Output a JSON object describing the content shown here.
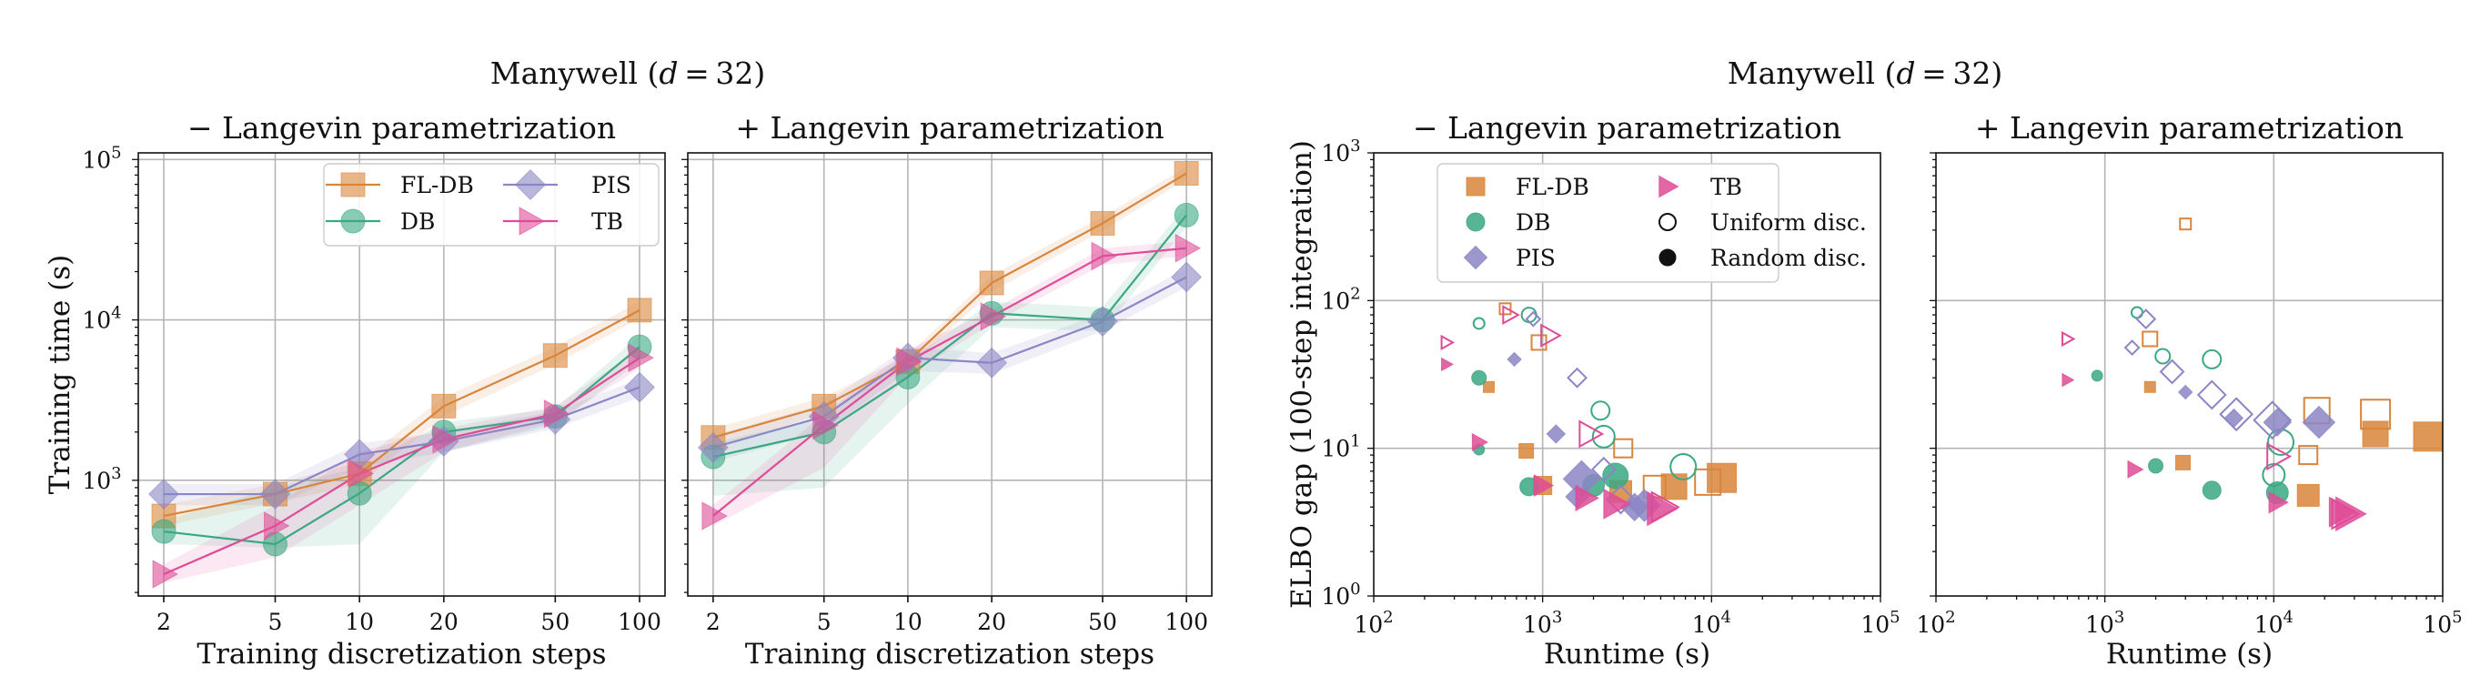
{
  "left_figure": {
    "suptitle_prefix": "Manywell (",
    "suptitle_var": "d",
    "suptitle_suffix": " = 32)"
  },
  "right_figure": {
    "suptitle_prefix": "Manywell (",
    "suptitle_var": "d",
    "suptitle_suffix": " = 32)"
  },
  "colors": {
    "FL-DB": "#d9853b",
    "DB": "#3aa882",
    "PIS": "#8b86c4",
    "TB": "#de4c97"
  },
  "chart_data": [
    {
      "type": "line",
      "title": "− Langevin parametrization",
      "xlabel": "Training discretization steps",
      "ylabel": "Training time (s)",
      "xscale": "log",
      "yscale": "log",
      "x": [
        2,
        5,
        10,
        20,
        50,
        100
      ],
      "x_tick_labels": [
        "2",
        "5",
        "10",
        "20",
        "50",
        "100"
      ],
      "ylim": [
        190,
        110000
      ],
      "y_ticks": [
        {
          "value": 1000,
          "base": "10",
          "exp": "3"
        },
        {
          "value": 10000,
          "base": "10",
          "exp": "4"
        },
        {
          "value": 100000,
          "base": "10",
          "exp": "5"
        }
      ],
      "grid": true,
      "legend": {
        "position": "top-right",
        "columns": 2
      },
      "series": [
        {
          "name": "FL-DB",
          "marker": "square",
          "values": [
            600,
            820,
            1100,
            2900,
            6000,
            11500
          ],
          "band_low": [
            520,
            720,
            950,
            2500,
            5300,
            10200
          ],
          "band_high": [
            700,
            950,
            1300,
            3300,
            6800,
            13000
          ]
        },
        {
          "name": "DB",
          "marker": "circle",
          "values": [
            480,
            400,
            830,
            2000,
            2500,
            6800
          ],
          "band_low": [
            400,
            380,
            400,
            1500,
            2200,
            5500
          ],
          "band_high": [
            560,
            900,
            1200,
            2300,
            2800,
            8000
          ]
        },
        {
          "name": "PIS",
          "marker": "diamond",
          "values": [
            820,
            820,
            1450,
            1750,
            2400,
            3800
          ],
          "band_low": [
            700,
            700,
            1200,
            1500,
            2100,
            3300
          ],
          "band_high": [
            950,
            950,
            1700,
            2000,
            2700,
            4300
          ]
        },
        {
          "name": "TB",
          "marker": "triangle",
          "values": [
            260,
            520,
            1100,
            1800,
            2600,
            5800
          ],
          "band_low": [
            230,
            330,
            700,
            1500,
            2300,
            5000
          ],
          "band_high": [
            300,
            700,
            1500,
            2100,
            2900,
            6600
          ]
        }
      ]
    },
    {
      "type": "line",
      "title": "+ Langevin parametrization",
      "xlabel": "Training discretization steps",
      "xscale": "log",
      "yscale": "log",
      "x": [
        2,
        5,
        10,
        20,
        50,
        100
      ],
      "x_tick_labels": [
        "2",
        "5",
        "10",
        "20",
        "50",
        "100"
      ],
      "ylim": [
        190,
        110000
      ],
      "grid": true,
      "series": [
        {
          "name": "FL-DB",
          "marker": "square",
          "values": [
            1850,
            2900,
            5500,
            17000,
            40000,
            82000
          ],
          "band_low": [
            1600,
            2600,
            5000,
            15000,
            36000,
            75000
          ],
          "band_high": [
            2100,
            3300,
            6000,
            19000,
            44000,
            90000
          ]
        },
        {
          "name": "DB",
          "marker": "circle",
          "values": [
            1400,
            2000,
            4400,
            11000,
            10000,
            45000
          ],
          "band_low": [
            800,
            900,
            3000,
            9000,
            8500,
            38000
          ],
          "band_high": [
            1700,
            2500,
            5500,
            13000,
            12000,
            52000
          ]
        },
        {
          "name": "PIS",
          "marker": "diamond",
          "values": [
            1600,
            2500,
            5800,
            5400,
            9800,
            18500
          ],
          "band_low": [
            1300,
            2000,
            4800,
            4600,
            8500,
            16000
          ],
          "band_high": [
            1900,
            3000,
            6800,
            6200,
            11000,
            21000
          ]
        },
        {
          "name": "TB",
          "marker": "triangle",
          "values": [
            600,
            2200,
            5500,
            10500,
            25000,
            28000
          ],
          "band_low": [
            520,
            1200,
            4500,
            9500,
            22000,
            25000
          ],
          "band_high": [
            700,
            2600,
            6500,
            11500,
            28000,
            31000
          ]
        }
      ]
    },
    {
      "type": "scatter",
      "title": "− Langevin parametrization",
      "xlabel": "Runtime (s)",
      "ylabel": "ELBO gap (100-step integration)",
      "xscale": "log",
      "yscale": "log",
      "xlim": [
        100,
        100000
      ],
      "ylim": [
        1,
        1000
      ],
      "x_ticks": [
        {
          "value": 100,
          "base": "10",
          "exp": "2"
        },
        {
          "value": 1000,
          "base": "10",
          "exp": "3"
        },
        {
          "value": 10000,
          "base": "10",
          "exp": "4"
        },
        {
          "value": 100000,
          "base": "10",
          "exp": "5"
        }
      ],
      "y_ticks": [
        {
          "value": 1,
          "base": "10",
          "exp": "0"
        },
        {
          "value": 10,
          "base": "10",
          "exp": "1"
        },
        {
          "value": 100,
          "base": "10",
          "exp": "2"
        },
        {
          "value": 1000,
          "base": "10",
          "exp": "3"
        }
      ],
      "grid": true,
      "legend": {
        "position": "top-left",
        "columns": 2
      },
      "legend_fill_labels": {
        "uniform": "Uniform disc.",
        "random": "Random disc."
      },
      "points": [
        {
          "series": "FL-DB",
          "fill": "random",
          "x": 480,
          "y": 26,
          "steps": 2
        },
        {
          "series": "FL-DB",
          "fill": "random",
          "x": 800,
          "y": 9.6,
          "steps": 5
        },
        {
          "series": "FL-DB",
          "fill": "random",
          "x": 1000,
          "y": 5.6,
          "steps": 10
        },
        {
          "series": "FL-DB",
          "fill": "random",
          "x": 2900,
          "y": 5.1,
          "steps": 20
        },
        {
          "series": "FL-DB",
          "fill": "random",
          "x": 6000,
          "y": 5.5,
          "steps": 50
        },
        {
          "series": "FL-DB",
          "fill": "random",
          "x": 11500,
          "y": 6.3,
          "steps": 100
        },
        {
          "series": "FL-DB",
          "fill": "uniform",
          "x": 600,
          "y": 88,
          "steps": 2
        },
        {
          "series": "FL-DB",
          "fill": "uniform",
          "x": 950,
          "y": 52,
          "steps": 5
        },
        {
          "series": "FL-DB",
          "fill": "uniform",
          "x": 3000,
          "y": 10,
          "steps": 10
        },
        {
          "series": "FL-DB",
          "fill": "uniform",
          "x": 4600,
          "y": 5.5,
          "steps": 20
        },
        {
          "series": "FL-DB",
          "fill": "uniform",
          "x": 9500,
          "y": 5.9,
          "steps": 50
        },
        {
          "series": "DB",
          "fill": "random",
          "x": 420,
          "y": 9.8,
          "steps": 2
        },
        {
          "series": "DB",
          "fill": "random",
          "x": 420,
          "y": 30,
          "steps": 5
        },
        {
          "series": "DB",
          "fill": "random",
          "x": 830,
          "y": 5.5,
          "steps": 10
        },
        {
          "series": "DB",
          "fill": "random",
          "x": 2000,
          "y": 5.6,
          "steps": 20
        },
        {
          "series": "DB",
          "fill": "random",
          "x": 2700,
          "y": 6.5,
          "steps": 50
        },
        {
          "series": "DB",
          "fill": "uniform",
          "x": 420,
          "y": 70,
          "steps": 2
        },
        {
          "series": "DB",
          "fill": "uniform",
          "x": 830,
          "y": 80,
          "steps": 5
        },
        {
          "series": "DB",
          "fill": "uniform",
          "x": 2200,
          "y": 18,
          "steps": 10
        },
        {
          "series": "DB",
          "fill": "uniform",
          "x": 2300,
          "y": 12,
          "steps": 20
        },
        {
          "series": "DB",
          "fill": "uniform",
          "x": 6800,
          "y": 7.5,
          "steps": 50
        },
        {
          "series": "PIS",
          "fill": "random",
          "x": 680,
          "y": 40,
          "steps": 2
        },
        {
          "series": "PIS",
          "fill": "random",
          "x": 1200,
          "y": 12.5,
          "steps": 5
        },
        {
          "series": "PIS",
          "fill": "random",
          "x": 1600,
          "y": 4.7,
          "steps": 10
        },
        {
          "series": "PIS",
          "fill": "random",
          "x": 3500,
          "y": 4.0,
          "steps": 20
        },
        {
          "series": "PIS",
          "fill": "random",
          "x": 4000,
          "y": 4.1,
          "steps": 50
        },
        {
          "series": "PIS",
          "fill": "random",
          "x": 1700,
          "y": 6.2,
          "steps": 100
        },
        {
          "series": "PIS",
          "fill": "uniform",
          "x": 880,
          "y": 75,
          "steps": 2
        },
        {
          "series": "PIS",
          "fill": "uniform",
          "x": 1600,
          "y": 30,
          "steps": 5
        },
        {
          "series": "PIS",
          "fill": "uniform",
          "x": 2300,
          "y": 7.2,
          "steps": 10
        },
        {
          "series": "PIS",
          "fill": "uniform",
          "x": 2900,
          "y": 4.5,
          "steps": 20
        },
        {
          "series": "TB",
          "fill": "random",
          "x": 270,
          "y": 37,
          "steps": 2
        },
        {
          "series": "TB",
          "fill": "random",
          "x": 420,
          "y": 11,
          "steps": 5
        },
        {
          "series": "TB",
          "fill": "random",
          "x": 1000,
          "y": 5.6,
          "steps": 10
        },
        {
          "series": "TB",
          "fill": "random",
          "x": 1800,
          "y": 4.6,
          "steps": 20
        },
        {
          "series": "TB",
          "fill": "random",
          "x": 2700,
          "y": 4.2,
          "steps": 50
        },
        {
          "series": "TB",
          "fill": "random",
          "x": 5000,
          "y": 3.9,
          "steps": 100
        },
        {
          "series": "TB",
          "fill": "uniform",
          "x": 270,
          "y": 52,
          "steps": 2
        },
        {
          "series": "TB",
          "fill": "uniform",
          "x": 640,
          "y": 80,
          "steps": 5
        },
        {
          "series": "TB",
          "fill": "uniform",
          "x": 1100,
          "y": 58,
          "steps": 10
        },
        {
          "series": "TB",
          "fill": "uniform",
          "x": 1900,
          "y": 12.5,
          "steps": 20
        },
        {
          "series": "TB",
          "fill": "uniform",
          "x": 5200,
          "y": 4.0,
          "steps": 50
        }
      ]
    },
    {
      "type": "scatter",
      "title": "+ Langevin parametrization",
      "xlabel": "Runtime (s)",
      "xscale": "log",
      "yscale": "log",
      "xlim": [
        100,
        100000
      ],
      "ylim": [
        1,
        1000
      ],
      "x_ticks": [
        {
          "value": 100,
          "base": "10",
          "exp": "2"
        },
        {
          "value": 1000,
          "base": "10",
          "exp": "3"
        },
        {
          "value": 10000,
          "base": "10",
          "exp": "4"
        },
        {
          "value": 100000,
          "base": "10",
          "exp": "5"
        }
      ],
      "grid": true,
      "points": [
        {
          "series": "FL-DB",
          "fill": "random",
          "x": 1850,
          "y": 26,
          "steps": 2
        },
        {
          "series": "FL-DB",
          "fill": "random",
          "x": 2900,
          "y": 8,
          "steps": 5
        },
        {
          "series": "FL-DB",
          "fill": "random",
          "x": 16000,
          "y": 4.8,
          "steps": 20
        },
        {
          "series": "FL-DB",
          "fill": "random",
          "x": 40000,
          "y": 12.5,
          "steps": 50
        },
        {
          "series": "FL-DB",
          "fill": "random",
          "x": 82000,
          "y": 12,
          "steps": 100
        },
        {
          "series": "FL-DB",
          "fill": "uniform",
          "x": 3000,
          "y": 330,
          "steps": 2
        },
        {
          "series": "FL-DB",
          "fill": "uniform",
          "x": 1850,
          "y": 55,
          "steps": 5
        },
        {
          "series": "FL-DB",
          "fill": "uniform",
          "x": 16000,
          "y": 9,
          "steps": 10
        },
        {
          "series": "FL-DB",
          "fill": "uniform",
          "x": 18000,
          "y": 18,
          "steps": 50
        },
        {
          "series": "FL-DB",
          "fill": "uniform",
          "x": 40000,
          "y": 17,
          "steps": 100
        },
        {
          "series": "DB",
          "fill": "random",
          "x": 900,
          "y": 31,
          "steps": 2
        },
        {
          "series": "DB",
          "fill": "random",
          "x": 2000,
          "y": 7.6,
          "steps": 5
        },
        {
          "series": "DB",
          "fill": "random",
          "x": 4300,
          "y": 5.2,
          "steps": 10
        },
        {
          "series": "DB",
          "fill": "random",
          "x": 10500,
          "y": 5.0,
          "steps": 20
        },
        {
          "series": "DB",
          "fill": "uniform",
          "x": 1550,
          "y": 83,
          "steps": 2
        },
        {
          "series": "DB",
          "fill": "uniform",
          "x": 2200,
          "y": 42,
          "steps": 5
        },
        {
          "series": "DB",
          "fill": "uniform",
          "x": 4300,
          "y": 40,
          "steps": 10
        },
        {
          "series": "DB",
          "fill": "uniform",
          "x": 10000,
          "y": 6.6,
          "steps": 20
        },
        {
          "series": "DB",
          "fill": "uniform",
          "x": 11000,
          "y": 11,
          "steps": 50
        },
        {
          "series": "PIS",
          "fill": "random",
          "x": 3000,
          "y": 24,
          "steps": 2
        },
        {
          "series": "PIS",
          "fill": "random",
          "x": 5800,
          "y": 16,
          "steps": 5
        },
        {
          "series": "PIS",
          "fill": "random",
          "x": 10500,
          "y": 15,
          "steps": 20
        },
        {
          "series": "PIS",
          "fill": "random",
          "x": 18500,
          "y": 15,
          "steps": 50
        },
        {
          "series": "PIS",
          "fill": "uniform",
          "x": 1450,
          "y": 48,
          "steps": 2
        },
        {
          "series": "PIS",
          "fill": "uniform",
          "x": 1750,
          "y": 75,
          "steps": 5
        },
        {
          "series": "PIS",
          "fill": "uniform",
          "x": 2500,
          "y": 33,
          "steps": 10
        },
        {
          "series": "PIS",
          "fill": "uniform",
          "x": 4300,
          "y": 23,
          "steps": 20
        },
        {
          "series": "PIS",
          "fill": "uniform",
          "x": 6000,
          "y": 17,
          "steps": 50
        },
        {
          "series": "PIS",
          "fill": "uniform",
          "x": 9800,
          "y": 15.5,
          "steps": 100
        },
        {
          "series": "TB",
          "fill": "random",
          "x": 600,
          "y": 29,
          "steps": 2
        },
        {
          "series": "TB",
          "fill": "random",
          "x": 1500,
          "y": 7.2,
          "steps": 5
        },
        {
          "series": "TB",
          "fill": "random",
          "x": 10500,
          "y": 4.3,
          "steps": 10
        },
        {
          "series": "TB",
          "fill": "random",
          "x": 25000,
          "y": 3.7,
          "steps": 50
        },
        {
          "series": "TB",
          "fill": "random",
          "x": 28000,
          "y": 3.6,
          "steps": 100
        },
        {
          "series": "TB",
          "fill": "uniform",
          "x": 600,
          "y": 55,
          "steps": 2
        },
        {
          "series": "TB",
          "fill": "uniform",
          "x": 10500,
          "y": 8.8,
          "steps": 20
        },
        {
          "series": "TB",
          "fill": "uniform",
          "x": 26000,
          "y": 3.6,
          "steps": 50
        }
      ]
    }
  ]
}
